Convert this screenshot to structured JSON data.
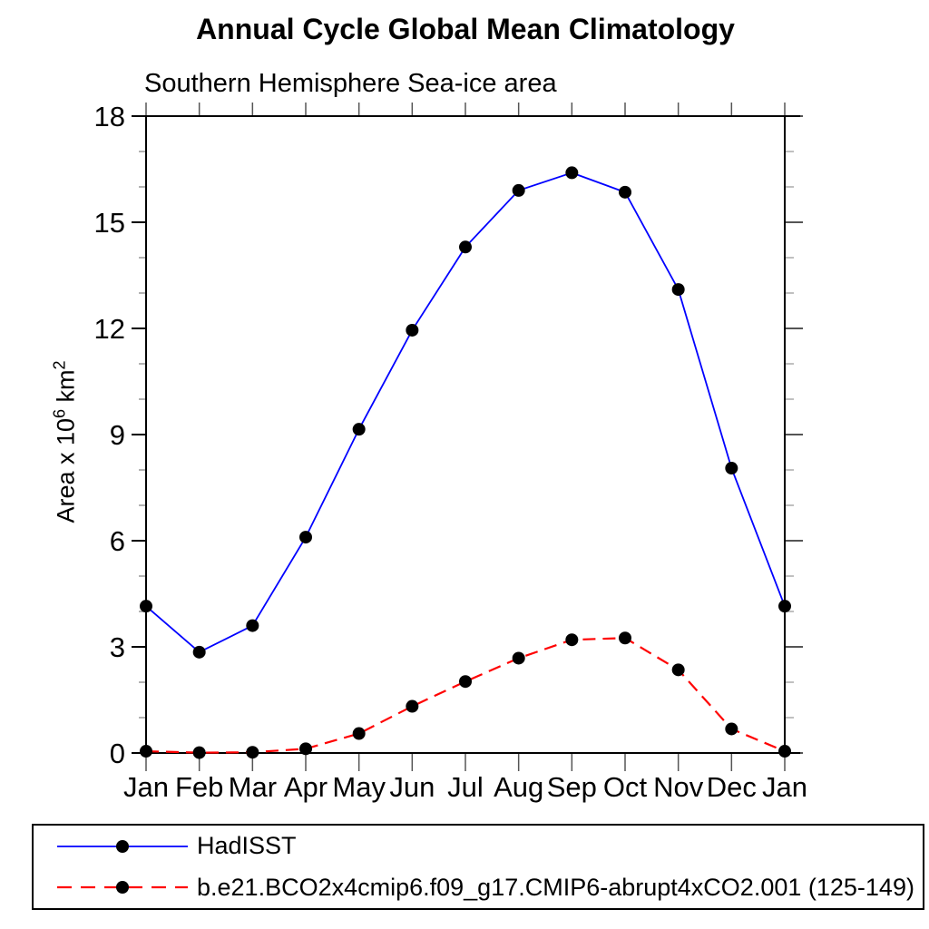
{
  "chart_data": {
    "type": "line",
    "title": "Annual Cycle Global Mean Climatology",
    "subtitle": "Southern Hemisphere Sea-ice area",
    "ylabel": "Area x 10⁶ km²",
    "ylabel_parts": {
      "base": "Area x 10",
      "exp": "6",
      "unit": " km",
      "unit_exp": "2"
    },
    "categories": [
      "Jan",
      "Feb",
      "Mar",
      "Apr",
      "May",
      "Jun",
      "Jul",
      "Aug",
      "Sep",
      "Oct",
      "Nov",
      "Dec",
      "Jan"
    ],
    "ylim": [
      0,
      18
    ],
    "ytick_major": [
      0,
      3,
      6,
      9,
      12,
      15,
      18
    ],
    "ytick_minor_step": 1,
    "grid": false,
    "legend_position": "bottom",
    "marker_color": "#000000",
    "axis_color": "#000000",
    "series": [
      {
        "name": "HadISST",
        "color": "#0000ff",
        "style": "solid",
        "values": [
          4.15,
          2.85,
          3.6,
          6.1,
          9.15,
          11.95,
          14.3,
          15.9,
          16.4,
          15.85,
          13.1,
          8.05,
          4.15
        ]
      },
      {
        "name": "b.e21.BCO2x4cmip6.f09_g17.CMIP6-abrupt4xCO2.001 (125-149)",
        "color": "#ff0000",
        "style": "dashed",
        "values": [
          0.05,
          0.01,
          0.02,
          0.12,
          0.55,
          1.32,
          2.02,
          2.68,
          3.2,
          3.25,
          2.35,
          0.68,
          0.05
        ]
      }
    ]
  }
}
